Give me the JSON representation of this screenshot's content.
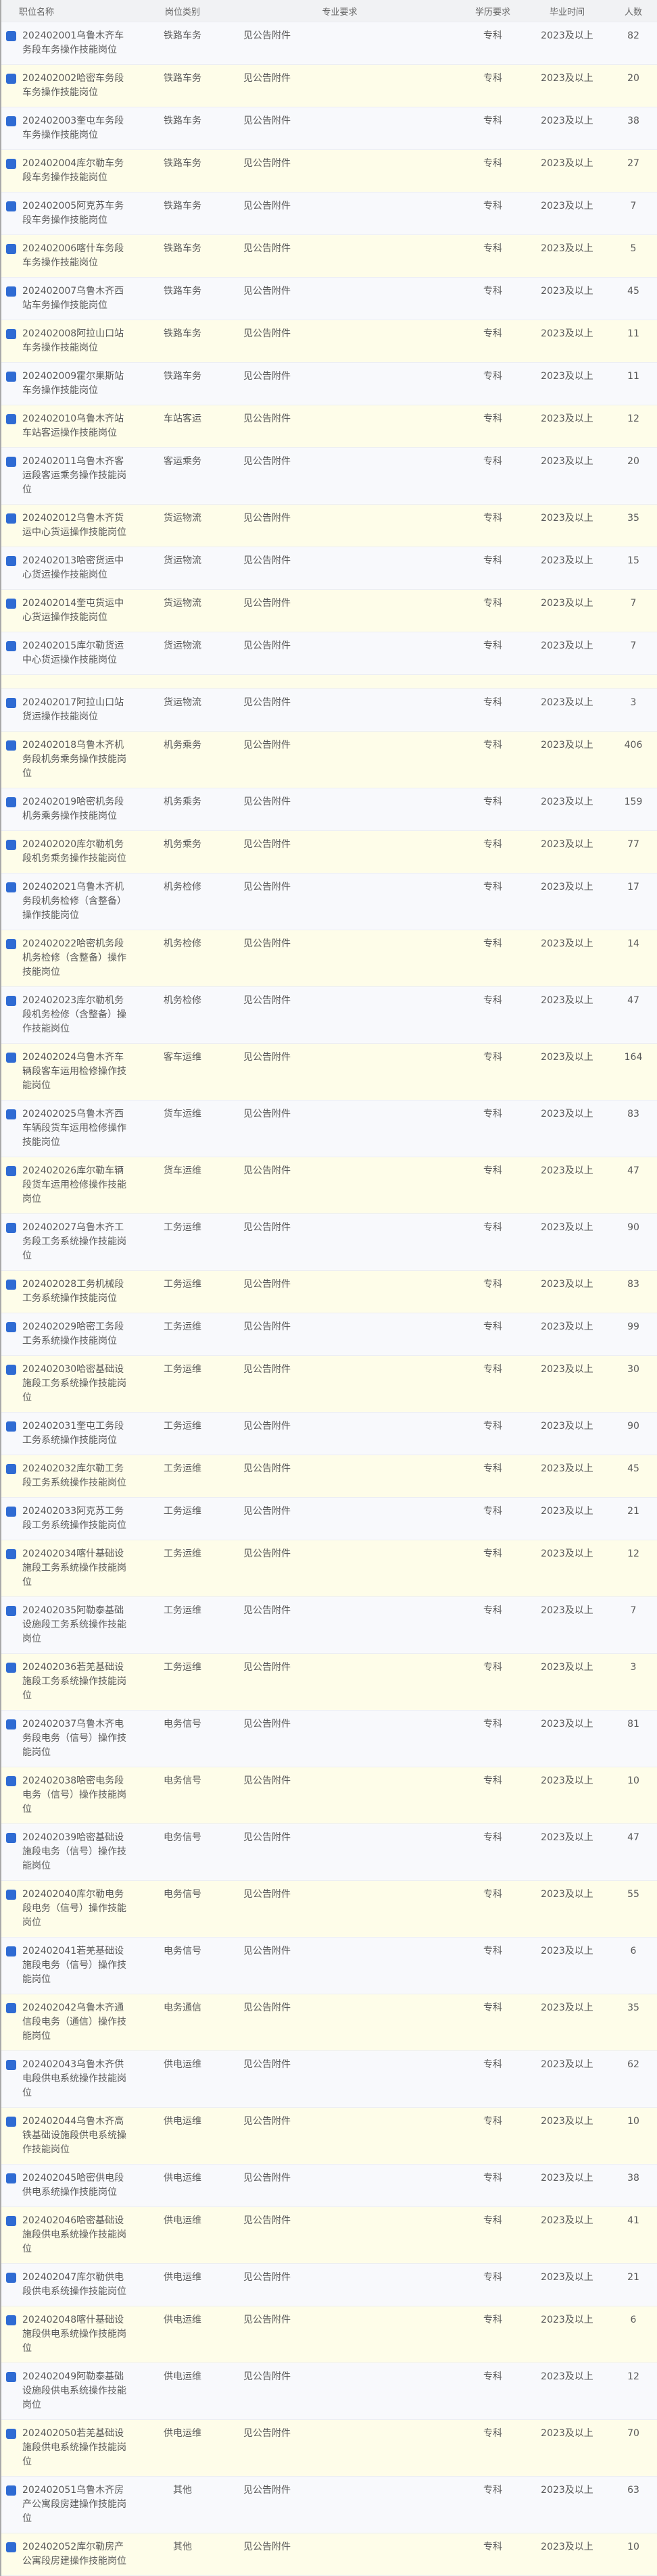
{
  "header": {
    "name": "职位名称",
    "category": "岗位类别",
    "major": "专业要求",
    "education": "学历要求",
    "graduation": "毕业时间",
    "count": "人数"
  },
  "colors": {
    "accent": "#2f6bd3",
    "row_alt": "#fefde9",
    "row": "#f8f9fc",
    "header_bg": "#f1f2f4"
  },
  "rows": [
    {
      "name": "202402001乌鲁木齐车务段车务操作技能岗位",
      "category": "铁路车务",
      "major": "见公告附件",
      "education": "专科",
      "graduation": "2023及以上",
      "count": "82"
    },
    {
      "name": "202402002哈密车务段车务操作技能岗位",
      "category": "铁路车务",
      "major": "见公告附件",
      "education": "专科",
      "graduation": "2023及以上",
      "count": "20"
    },
    {
      "name": "202402003奎屯车务段车务操作技能岗位",
      "category": "铁路车务",
      "major": "见公告附件",
      "education": "专科",
      "graduation": "2023及以上",
      "count": "38"
    },
    {
      "name": "202402004库尔勒车务段车务操作技能岗位",
      "category": "铁路车务",
      "major": "见公告附件",
      "education": "专科",
      "graduation": "2023及以上",
      "count": "27"
    },
    {
      "name": "202402005阿克苏车务段车务操作技能岗位",
      "category": "铁路车务",
      "major": "见公告附件",
      "education": "专科",
      "graduation": "2023及以上",
      "count": "7"
    },
    {
      "name": "202402006喀什车务段车务操作技能岗位",
      "category": "铁路车务",
      "major": "见公告附件",
      "education": "专科",
      "graduation": "2023及以上",
      "count": "5"
    },
    {
      "name": "202402007乌鲁木齐西站车务操作技能岗位",
      "category": "铁路车务",
      "major": "见公告附件",
      "education": "专科",
      "graduation": "2023及以上",
      "count": "45"
    },
    {
      "name": "202402008阿拉山口站车务操作技能岗位",
      "category": "铁路车务",
      "major": "见公告附件",
      "education": "专科",
      "graduation": "2023及以上",
      "count": "11"
    },
    {
      "name": "202402009霍尔果斯站车务操作技能岗位",
      "category": "铁路车务",
      "major": "见公告附件",
      "education": "专科",
      "graduation": "2023及以上",
      "count": "11"
    },
    {
      "name": "202402010乌鲁木齐站车站客运操作技能岗位",
      "category": "车站客运",
      "major": "见公告附件",
      "education": "专科",
      "graduation": "2023及以上",
      "count": "12"
    },
    {
      "name": "202402011乌鲁木齐客运段客运乘务操作技能岗位",
      "category": "客运乘务",
      "major": "见公告附件",
      "education": "专科",
      "graduation": "2023及以上",
      "count": "20"
    },
    {
      "name": "202402012乌鲁木齐货运中心货运操作技能岗位",
      "category": "货运物流",
      "major": "见公告附件",
      "education": "专科",
      "graduation": "2023及以上",
      "count": "35"
    },
    {
      "name": "202402013哈密货运中心货运操作技能岗位",
      "category": "货运物流",
      "major": "见公告附件",
      "education": "专科",
      "graduation": "2023及以上",
      "count": "15"
    },
    {
      "name": "202402014奎屯货运中心货运操作技能岗位",
      "category": "货运物流",
      "major": "见公告附件",
      "education": "专科",
      "graduation": "2023及以上",
      "count": "7"
    },
    {
      "name": "202402015库尔勒货运中心货运操作技能岗位",
      "category": "货运物流",
      "major": "见公告附件",
      "education": "专科",
      "graduation": "2023及以上",
      "count": "7"
    },
    {},
    {
      "name": "202402017阿拉山口站货运操作技能岗位",
      "category": "货运物流",
      "major": "见公告附件",
      "education": "专科",
      "graduation": "2023及以上",
      "count": "3"
    },
    {
      "name": "202402018乌鲁木齐机务段机务乘务操作技能岗位",
      "category": "机务乘务",
      "major": "见公告附件",
      "education": "专科",
      "graduation": "2023及以上",
      "count": "406"
    },
    {
      "name": "202402019哈密机务段机务乘务操作技能岗位",
      "category": "机务乘务",
      "major": "见公告附件",
      "education": "专科",
      "graduation": "2023及以上",
      "count": "159"
    },
    {
      "name": "202402020库尔勒机务段机务乘务操作技能岗位",
      "category": "机务乘务",
      "major": "见公告附件",
      "education": "专科",
      "graduation": "2023及以上",
      "count": "77"
    },
    {
      "name": "202402021乌鲁木齐机务段机务检修（含整备）操作技能岗位",
      "category": "机务检修",
      "major": "见公告附件",
      "education": "专科",
      "graduation": "2023及以上",
      "count": "17"
    },
    {
      "name": "202402022哈密机务段机务检修（含整备）操作技能岗位",
      "category": "机务检修",
      "major": "见公告附件",
      "education": "专科",
      "graduation": "2023及以上",
      "count": "14"
    },
    {
      "name": "202402023库尔勒机务段机务检修（含整备）操作技能岗位",
      "category": "机务检修",
      "major": "见公告附件",
      "education": "专科",
      "graduation": "2023及以上",
      "count": "47"
    },
    {
      "name": "202402024乌鲁木齐车辆段客车运用检修操作技能岗位",
      "category": "客车运维",
      "major": "见公告附件",
      "education": "专科",
      "graduation": "2023及以上",
      "count": "164"
    },
    {
      "name": "202402025乌鲁木齐西车辆段货车运用检修操作技能岗位",
      "category": "货车运维",
      "major": "见公告附件",
      "education": "专科",
      "graduation": "2023及以上",
      "count": "83"
    },
    {
      "name": "202402026库尔勒车辆段货车运用检修操作技能岗位",
      "category": "货车运维",
      "major": "见公告附件",
      "education": "专科",
      "graduation": "2023及以上",
      "count": "47"
    },
    {
      "name": "202402027乌鲁木齐工务段工务系统操作技能岗位",
      "category": "工务运维",
      "major": "见公告附件",
      "education": "专科",
      "graduation": "2023及以上",
      "count": "90"
    },
    {
      "name": "202402028工务机械段工务系统操作技能岗位",
      "category": "工务运维",
      "major": "见公告附件",
      "education": "专科",
      "graduation": "2023及以上",
      "count": "83"
    },
    {
      "name": "202402029哈密工务段工务系统操作技能岗位",
      "category": "工务运维",
      "major": "见公告附件",
      "education": "专科",
      "graduation": "2023及以上",
      "count": "99"
    },
    {
      "name": "202402030哈密基础设施段工务系统操作技能岗位",
      "category": "工务运维",
      "major": "见公告附件",
      "education": "专科",
      "graduation": "2023及以上",
      "count": "30"
    },
    {
      "name": "202402031奎屯工务段工务系统操作技能岗位",
      "category": "工务运维",
      "major": "见公告附件",
      "education": "专科",
      "graduation": "2023及以上",
      "count": "90"
    },
    {
      "name": "202402032库尔勒工务段工务系统操作技能岗位",
      "category": "工务运维",
      "major": "见公告附件",
      "education": "专科",
      "graduation": "2023及以上",
      "count": "45"
    },
    {
      "name": "202402033阿克苏工务段工务系统操作技能岗位",
      "category": "工务运维",
      "major": "见公告附件",
      "education": "专科",
      "graduation": "2023及以上",
      "count": "21"
    },
    {
      "name": "202402034喀什基础设施段工务系统操作技能岗位",
      "category": "工务运维",
      "major": "见公告附件",
      "education": "专科",
      "graduation": "2023及以上",
      "count": "12"
    },
    {
      "name": "202402035阿勒泰基础设施段工务系统操作技能岗位",
      "category": "工务运维",
      "major": "见公告附件",
      "education": "专科",
      "graduation": "2023及以上",
      "count": "7"
    },
    {
      "name": "202402036若羌基础设施段工务系统操作技能岗位",
      "category": "工务运维",
      "major": "见公告附件",
      "education": "专科",
      "graduation": "2023及以上",
      "count": "3"
    },
    {
      "name": "202402037乌鲁木齐电务段电务（信号）操作技能岗位",
      "category": "电务信号",
      "major": "见公告附件",
      "education": "专科",
      "graduation": "2023及以上",
      "count": "81"
    },
    {
      "name": "202402038哈密电务段电务（信号）操作技能岗位",
      "category": "电务信号",
      "major": "见公告附件",
      "education": "专科",
      "graduation": "2023及以上",
      "count": "10"
    },
    {
      "name": "202402039哈密基础设施段电务（信号）操作技能岗位",
      "category": "电务信号",
      "major": "见公告附件",
      "education": "专科",
      "graduation": "2023及以上",
      "count": "47"
    },
    {
      "name": "202402040库尔勒电务段电务（信号）操作技能岗位",
      "category": "电务信号",
      "major": "见公告附件",
      "education": "专科",
      "graduation": "2023及以上",
      "count": "55"
    },
    {
      "name": "202402041若羌基础设施段电务（信号）操作技能岗位",
      "category": "电务信号",
      "major": "见公告附件",
      "education": "专科",
      "graduation": "2023及以上",
      "count": "6"
    },
    {
      "name": "202402042乌鲁木齐通信段电务（通信）操作技能岗位",
      "category": "电务通信",
      "major": "见公告附件",
      "education": "专科",
      "graduation": "2023及以上",
      "count": "35"
    },
    {
      "name": "202402043乌鲁木齐供电段供电系统操作技能岗位",
      "category": "供电运维",
      "major": "见公告附件",
      "education": "专科",
      "graduation": "2023及以上",
      "count": "62"
    },
    {
      "name": "202402044乌鲁木齐高铁基础设施段供电系统操作技能岗位",
      "category": "供电运维",
      "major": "见公告附件",
      "education": "专科",
      "graduation": "2023及以上",
      "count": "10"
    },
    {
      "name": "202402045哈密供电段供电系统操作技能岗位",
      "category": "供电运维",
      "major": "见公告附件",
      "education": "专科",
      "graduation": "2023及以上",
      "count": "38"
    },
    {
      "name": "202402046哈密基础设施段供电系统操作技能岗位",
      "category": "供电运维",
      "major": "见公告附件",
      "education": "专科",
      "graduation": "2023及以上",
      "count": "41"
    },
    {
      "name": "202402047库尔勒供电段供电系统操作技能岗位",
      "category": "供电运维",
      "major": "见公告附件",
      "education": "专科",
      "graduation": "2023及以上",
      "count": "21"
    },
    {
      "name": "202402048喀什基础设施段供电系统操作技能岗位",
      "category": "供电运维",
      "major": "见公告附件",
      "education": "专科",
      "graduation": "2023及以上",
      "count": "6"
    },
    {
      "name": "202402049阿勒泰基础设施段供电系统操作技能岗位",
      "category": "供电运维",
      "major": "见公告附件",
      "education": "专科",
      "graduation": "2023及以上",
      "count": "12"
    },
    {
      "name": "202402050若羌基础设施段供电系统操作技能岗位",
      "category": "供电运维",
      "major": "见公告附件",
      "education": "专科",
      "graduation": "2023及以上",
      "count": "70"
    },
    {
      "name": "202402051乌鲁木齐房产公寓段房建操作技能岗位",
      "category": "其他",
      "major": "见公告附件",
      "education": "专科",
      "graduation": "2023及以上",
      "count": "63"
    },
    {
      "name": "202402052库尔勒房产公寓段房建操作技能岗位",
      "category": "其他",
      "major": "见公告附件",
      "education": "专科",
      "graduation": "2023及以上",
      "count": "10"
    }
  ]
}
